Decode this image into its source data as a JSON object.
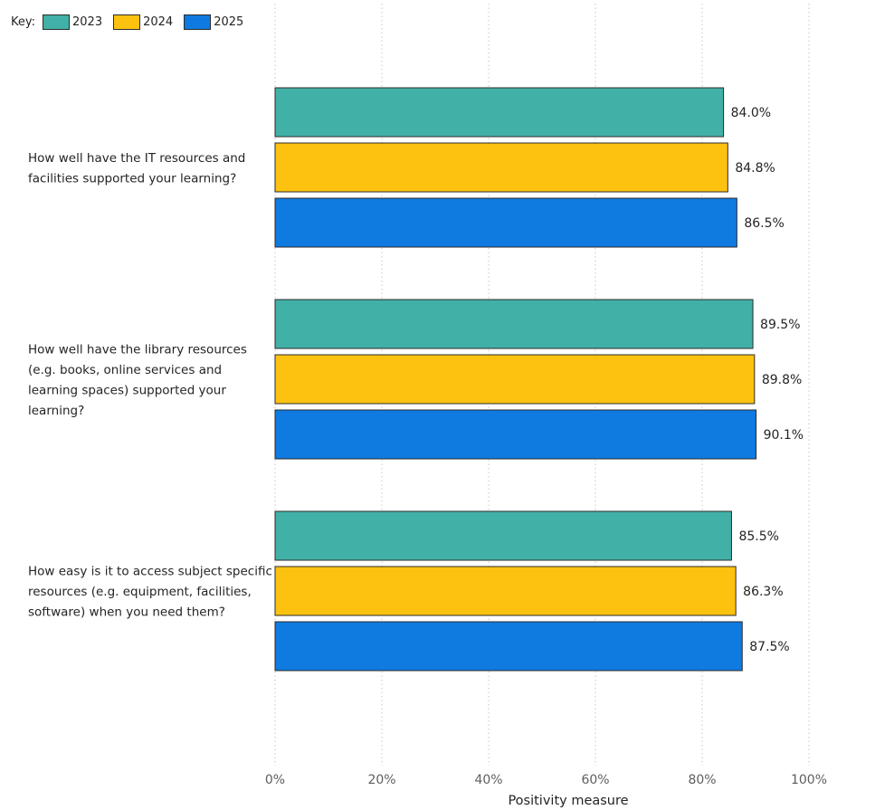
{
  "legend": {
    "key_label": "Key:"
  },
  "chart_data": {
    "type": "bar",
    "orientation": "horizontal",
    "categories": [
      [
        "How well have the IT resources and",
        "facilities supported your learning?"
      ],
      [
        "How well have the library resources",
        "(e.g. books, online services and",
        "learning spaces) supported your",
        "learning?"
      ],
      [
        "How easy is it to access subject specific",
        "resources (e.g. equipment, facilities,",
        "software) when you need them?"
      ]
    ],
    "series": [
      {
        "name": "2023",
        "color": "#41b0a6",
        "values": [
          84.0,
          89.5,
          85.5
        ],
        "labels": [
          "84.0%",
          "89.5%",
          "85.5%"
        ]
      },
      {
        "name": "2024",
        "color": "#fdc20f",
        "values": [
          84.8,
          89.8,
          86.3
        ],
        "labels": [
          "84.8%",
          "89.8%",
          "86.3%"
        ]
      },
      {
        "name": "2025",
        "color": "#0f7adf",
        "values": [
          86.5,
          90.1,
          87.5
        ],
        "labels": [
          "86.5%",
          "90.1%",
          "87.5%"
        ]
      }
    ],
    "xlim": [
      0,
      100
    ],
    "xticks": [
      "0%",
      "20%",
      "40%",
      "60%",
      "80%",
      "100%"
    ],
    "xlabel": "Positivity measure",
    "ylabel": "",
    "grid": true,
    "legend_position": "top-left"
  }
}
